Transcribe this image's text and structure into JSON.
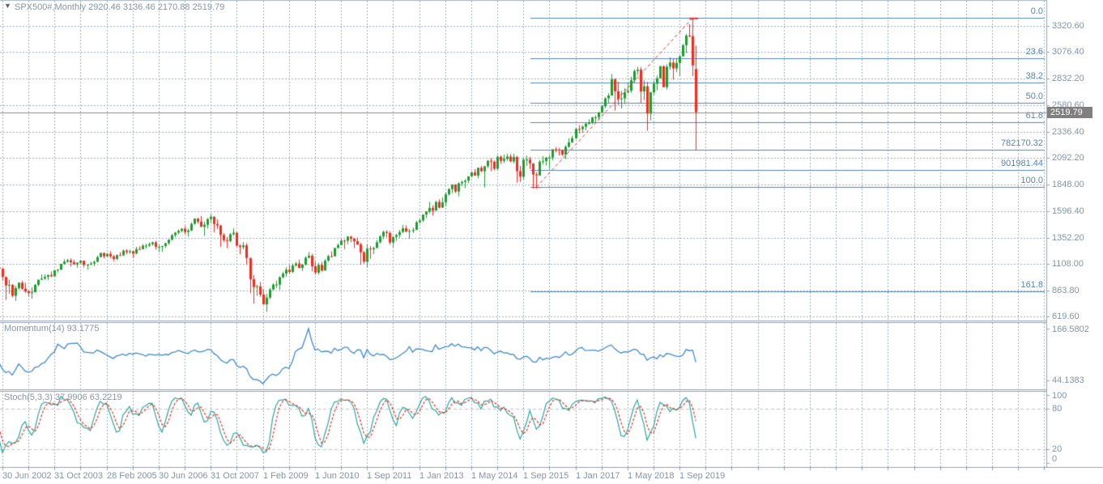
{
  "header": {
    "symbol_title": "SPX500#,Monthly 2920.46 3136.46 2170.88 2519.79",
    "dropdown_icon": "▼"
  },
  "panes": {
    "momentum_label": "Momentum(14) 93.1775",
    "stochastic_label": "Stoch(5,3,3) 37.9906 63.2219"
  },
  "axes": {
    "price_ticks": [
      "3320.60",
      "3076.40",
      "2832.20",
      "2580.60",
      "2336.40",
      "2092.20",
      "1848.00",
      "1596.40",
      "1352.20",
      "1108.00",
      "863.80",
      "619.60"
    ],
    "current_price": "2519.79",
    "momentum_scale_max": "166.5802",
    "momentum_scale_min": "44.1383",
    "stoch_scale": [
      "100",
      "80",
      "20",
      "0"
    ],
    "time_labels": [
      "30 Jun 2002",
      "31 Oct 2003",
      "28 Feb 2005",
      "30 Jun 2006",
      "31 Oct 2007",
      "1 Feb 2009",
      "1 Jun 2010",
      "1 Sep 2011",
      "1 Jan 2013",
      "1 May 2014",
      "1 Sep 2015",
      "1 Jan 2017",
      "1 May 2018",
      "1 Sep 2019"
    ]
  },
  "colors": {
    "background": "#ffffff",
    "grid": "#9faebf",
    "candle_up": "#1e9c30",
    "candle_down": "#f5291d",
    "fib_line": "#5585bb",
    "fib_anchor": "#e03030",
    "trendline": "#e03030",
    "momentum_line": "#3d8bd4",
    "stoch_main": "#28a9a1",
    "stoch_signal": "#ea3323",
    "current_price_line": "#8c8c8c",
    "price_tag_bg": "#7f7f7f",
    "separator": "#96a3b0",
    "stoch_level": "#c3c3c3",
    "axis_text": "#8495a8"
  },
  "chart_data": {
    "type": "candlestick",
    "symbol": "SPX500#",
    "timeframe": "Monthly",
    "last_bar": {
      "open": 2920.46,
      "high": 3136.46,
      "low": 2170.88,
      "close": 2519.79
    },
    "first_bar_month": "2002-04",
    "legend_position": "top-left",
    "grid": true,
    "fibonacci": {
      "levels": [
        {
          "label": "0.0",
          "price": 3393.52
        },
        {
          "label": "23.6",
          "price": 3023.2
        },
        {
          "label": "38.2",
          "price": 2794.2
        },
        {
          "label": "50.0",
          "price": 2609.0
        },
        {
          "label": "61.8",
          "price": 2423.9
        },
        {
          "label": "782170.32",
          "price": 2170.32
        },
        {
          "label": "901981.44",
          "price": 1981.44
        },
        {
          "label": "100.0",
          "price": 1824.52
        },
        {
          "label": "161.8",
          "price": 855.1
        }
      ],
      "trendline": {
        "from_bar": 166,
        "from_price": 1824.52,
        "to_bar": 214,
        "to_price": 3393.52
      }
    },
    "indicators": [
      {
        "name": "Momentum",
        "period": 14,
        "current": 93.1775,
        "scale_max": 166.5802,
        "scale_min": 44.1383
      },
      {
        "name": "Stochastic",
        "params": [
          5,
          3,
          3
        ],
        "main": 37.9906,
        "signal": 63.2219,
        "levels": [
          80,
          20
        ]
      }
    ],
    "ohlc_prelude": [
      [
        1366,
        1383,
        1215,
        1239
      ],
      [
        1239,
        1267,
        1081,
        1160
      ],
      [
        1160,
        1270,
        1091,
        1249
      ],
      [
        1249,
        1315,
        1232,
        1255
      ],
      [
        1255,
        1286,
        1203,
        1224
      ],
      [
        1224,
        1239,
        1165,
        1211
      ],
      [
        1211,
        1227,
        1124,
        1133
      ],
      [
        1133,
        1155,
        944,
        1040
      ],
      [
        1040,
        1110,
        1026,
        1059
      ],
      [
        1059,
        1163,
        1054,
        1139
      ],
      [
        1139,
        1173,
        1114,
        1148
      ],
      [
        1148,
        1176,
        1081,
        1130
      ],
      [
        1130,
        1130,
        1074,
        1106
      ],
      [
        1106,
        1173,
        1103,
        1147
      ]
    ],
    "ohlc": [
      [
        1147,
        1147,
        1063,
        1077
      ],
      [
        1077,
        1097,
        1048,
        1067
      ],
      [
        1067,
        1070,
        953,
        990
      ],
      [
        990,
        990,
        776,
        911
      ],
      [
        911,
        965,
        833,
        916
      ],
      [
        916,
        924,
        800,
        815
      ],
      [
        815,
        907,
        768,
        886
      ],
      [
        886,
        941,
        872,
        936
      ],
      [
        936,
        954,
        869,
        880
      ],
      [
        880,
        935,
        840,
        856
      ],
      [
        856,
        864,
        806,
        841
      ],
      [
        841,
        895,
        789,
        848
      ],
      [
        848,
        924,
        847,
        917
      ],
      [
        917,
        965,
        902,
        964
      ],
      [
        964,
        1015,
        962,
        975
      ],
      [
        975,
        1015,
        962,
        990
      ],
      [
        990,
        1011,
        960,
        1008
      ],
      [
        1008,
        1040,
        990,
        996
      ],
      [
        996,
        1053,
        995,
        1051
      ],
      [
        1051,
        1063,
        1031,
        1058
      ],
      [
        1058,
        1112,
        1053,
        1112
      ],
      [
        1112,
        1155,
        1105,
        1131
      ],
      [
        1131,
        1158,
        1122,
        1145
      ],
      [
        1145,
        1163,
        1087,
        1126
      ],
      [
        1126,
        1150,
        1107,
        1107
      ],
      [
        1107,
        1127,
        1076,
        1121
      ],
      [
        1121,
        1146,
        1113,
        1141
      ],
      [
        1141,
        1141,
        1078,
        1102
      ],
      [
        1102,
        1109,
        1060,
        1104
      ],
      [
        1104,
        1131,
        1099,
        1115
      ],
      [
        1115,
        1142,
        1090,
        1130
      ],
      [
        1130,
        1188,
        1127,
        1174
      ],
      [
        1174,
        1217,
        1173,
        1212
      ],
      [
        1212,
        1217,
        1163,
        1181
      ],
      [
        1181,
        1212,
        1180,
        1204
      ],
      [
        1204,
        1229,
        1163,
        1181
      ],
      [
        1181,
        1192,
        1136,
        1157
      ],
      [
        1157,
        1199,
        1146,
        1192
      ],
      [
        1192,
        1219,
        1188,
        1191
      ],
      [
        1191,
        1245,
        1183,
        1234
      ],
      [
        1234,
        1246,
        1201,
        1220
      ],
      [
        1220,
        1243,
        1205,
        1229
      ],
      [
        1229,
        1233,
        1168,
        1207
      ],
      [
        1207,
        1270,
        1201,
        1249
      ],
      [
        1249,
        1275,
        1246,
        1248
      ],
      [
        1248,
        1294,
        1245,
        1280
      ],
      [
        1280,
        1297,
        1254,
        1281
      ],
      [
        1281,
        1310,
        1268,
        1295
      ],
      [
        1295,
        1318,
        1280,
        1311
      ],
      [
        1311,
        1326,
        1246,
        1270
      ],
      [
        1270,
        1290,
        1219,
        1270
      ],
      [
        1270,
        1280,
        1225,
        1277
      ],
      [
        1277,
        1306,
        1261,
        1304
      ],
      [
        1304,
        1340,
        1290,
        1336
      ],
      [
        1336,
        1389,
        1327,
        1378
      ],
      [
        1378,
        1407,
        1360,
        1401
      ],
      [
        1401,
        1432,
        1385,
        1418
      ],
      [
        1418,
        1441,
        1404,
        1438
      ],
      [
        1438,
        1461,
        1389,
        1407
      ],
      [
        1407,
        1438,
        1364,
        1421
      ],
      [
        1421,
        1498,
        1416,
        1482
      ],
      [
        1482,
        1535,
        1476,
        1531
      ],
      [
        1531,
        1540,
        1485,
        1503
      ],
      [
        1503,
        1556,
        1454,
        1455
      ],
      [
        1455,
        1504,
        1371,
        1474
      ],
      [
        1474,
        1539,
        1439,
        1527
      ],
      [
        1527,
        1576,
        1489,
        1549
      ],
      [
        1549,
        1552,
        1406,
        1481
      ],
      [
        1481,
        1524,
        1436,
        1468
      ],
      [
        1468,
        1472,
        1270,
        1379
      ],
      [
        1379,
        1396,
        1316,
        1331
      ],
      [
        1331,
        1359,
        1257,
        1323
      ],
      [
        1323,
        1397,
        1313,
        1386
      ],
      [
        1386,
        1440,
        1374,
        1400
      ],
      [
        1400,
        1406,
        1272,
        1280
      ],
      [
        1280,
        1292,
        1200,
        1267
      ],
      [
        1267,
        1313,
        1247,
        1283
      ],
      [
        1283,
        1303,
        1106,
        1166
      ],
      [
        1166,
        1167,
        839,
        969
      ],
      [
        969,
        1007,
        741,
        896
      ],
      [
        896,
        918,
        815,
        903
      ],
      [
        903,
        943,
        804,
        826
      ],
      [
        826,
        875,
        735,
        735
      ],
      [
        735,
        832,
        666,
        798
      ],
      [
        798,
        888,
        783,
        873
      ],
      [
        873,
        930,
        866,
        919
      ],
      [
        919,
        956,
        888,
        919
      ],
      [
        919,
        996,
        869,
        987
      ],
      [
        987,
        1039,
        978,
        1021
      ],
      [
        1021,
        1080,
        992,
        1057
      ],
      [
        1057,
        1101,
        1019,
        1036
      ],
      [
        1036,
        1113,
        1029,
        1096
      ],
      [
        1096,
        1130,
        1085,
        1115
      ],
      [
        1115,
        1150,
        1071,
        1074
      ],
      [
        1074,
        1112,
        1045,
        1104
      ],
      [
        1104,
        1181,
        1097,
        1169
      ],
      [
        1169,
        1220,
        1162,
        1187
      ],
      [
        1187,
        1205,
        1041,
        1089
      ],
      [
        1089,
        1131,
        1011,
        1031
      ],
      [
        1031,
        1121,
        1011,
        1102
      ],
      [
        1102,
        1130,
        1040,
        1049
      ],
      [
        1049,
        1158,
        1049,
        1141
      ],
      [
        1141,
        1196,
        1132,
        1183
      ],
      [
        1183,
        1227,
        1173,
        1181
      ],
      [
        1181,
        1263,
        1187,
        1258
      ],
      [
        1258,
        1302,
        1257,
        1286
      ],
      [
        1286,
        1344,
        1289,
        1327
      ],
      [
        1327,
        1338,
        1249,
        1326
      ],
      [
        1326,
        1370,
        1294,
        1364
      ],
      [
        1364,
        1371,
        1311,
        1345
      ],
      [
        1345,
        1353,
        1258,
        1321
      ],
      [
        1321,
        1356,
        1282,
        1292
      ],
      [
        1292,
        1307,
        1101,
        1219
      ],
      [
        1219,
        1230,
        1114,
        1131
      ],
      [
        1131,
        1293,
        1075,
        1253
      ],
      [
        1253,
        1277,
        1158,
        1247
      ],
      [
        1247,
        1270,
        1202,
        1258
      ],
      [
        1258,
        1333,
        1258,
        1312
      ],
      [
        1312,
        1378,
        1300,
        1366
      ],
      [
        1366,
        1419,
        1340,
        1408
      ],
      [
        1408,
        1422,
        1357,
        1398
      ],
      [
        1398,
        1415,
        1291,
        1310
      ],
      [
        1310,
        1363,
        1266,
        1362
      ],
      [
        1362,
        1391,
        1325,
        1379
      ],
      [
        1379,
        1426,
        1354,
        1407
      ],
      [
        1407,
        1474,
        1396,
        1441
      ],
      [
        1441,
        1470,
        1403,
        1412
      ],
      [
        1412,
        1434,
        1343,
        1416
      ],
      [
        1416,
        1448,
        1398,
        1426
      ],
      [
        1426,
        1509,
        1426,
        1498
      ],
      [
        1498,
        1530,
        1485,
        1515
      ],
      [
        1515,
        1570,
        1501,
        1569
      ],
      [
        1569,
        1597,
        1536,
        1598
      ],
      [
        1598,
        1687,
        1581,
        1631
      ],
      [
        1631,
        1654,
        1560,
        1606
      ],
      [
        1606,
        1698,
        1604,
        1686
      ],
      [
        1686,
        1710,
        1627,
        1633
      ],
      [
        1633,
        1730,
        1633,
        1682
      ],
      [
        1682,
        1775,
        1646,
        1757
      ],
      [
        1757,
        1813,
        1746,
        1806
      ],
      [
        1806,
        1849,
        1768,
        1848
      ],
      [
        1848,
        1851,
        1770,
        1783
      ],
      [
        1783,
        1868,
        1738,
        1859
      ],
      [
        1859,
        1884,
        1834,
        1872
      ],
      [
        1872,
        1897,
        1814,
        1884
      ],
      [
        1884,
        1924,
        1860,
        1924
      ],
      [
        1924,
        1968,
        1916,
        1960
      ],
      [
        1960,
        1991,
        1930,
        1931
      ],
      [
        1931,
        2005,
        1905,
        2003
      ],
      [
        2003,
        2019,
        1964,
        1972
      ],
      [
        1972,
        2018,
        1821,
        2018
      ],
      [
        2018,
        2076,
        2001,
        2068
      ],
      [
        2068,
        2094,
        1972,
        2059
      ],
      [
        2059,
        2072,
        1981,
        1995
      ],
      [
        1995,
        2120,
        1980,
        2105
      ],
      [
        2105,
        2118,
        2040,
        2068
      ],
      [
        2068,
        2126,
        2048,
        2086
      ],
      [
        2086,
        2135,
        2068,
        2107
      ],
      [
        2107,
        2130,
        2056,
        2063
      ],
      [
        2063,
        2133,
        2044,
        2104
      ],
      [
        2104,
        2113,
        1867,
        1972
      ],
      [
        1972,
        2021,
        1872,
        1920
      ],
      [
        1920,
        2095,
        1894,
        2079
      ],
      [
        2079,
        2116,
        2019,
        2080
      ],
      [
        2080,
        2105,
        1993,
        2044
      ],
      [
        2044,
        2044,
        1812,
        1940
      ],
      [
        1940,
        1963,
        1810,
        1932
      ],
      [
        1932,
        2073,
        1932,
        2060
      ],
      [
        2060,
        2111,
        2034,
        2065
      ],
      [
        2065,
        2103,
        2025,
        2097
      ],
      [
        2097,
        2120,
        1992,
        2099
      ],
      [
        2099,
        2177,
        2074,
        2174
      ],
      [
        2174,
        2194,
        2147,
        2171
      ],
      [
        2171,
        2188,
        2119,
        2168
      ],
      [
        2168,
        2170,
        2114,
        2126
      ],
      [
        2126,
        2214,
        2083,
        2199
      ],
      [
        2199,
        2278,
        2187,
        2239
      ],
      [
        2239,
        2301,
        2234,
        2279
      ],
      [
        2279,
        2372,
        2267,
        2364
      ],
      [
        2364,
        2401,
        2322,
        2363
      ],
      [
        2363,
        2399,
        2328,
        2384
      ],
      [
        2384,
        2419,
        2352,
        2412
      ],
      [
        2412,
        2454,
        2405,
        2423
      ],
      [
        2423,
        2478,
        2408,
        2470
      ],
      [
        2470,
        2491,
        2417,
        2472
      ],
      [
        2472,
        2519,
        2446,
        2519
      ],
      [
        2519,
        2583,
        2520,
        2575
      ],
      [
        2575,
        2658,
        2557,
        2648
      ],
      [
        2648,
        2695,
        2606,
        2674
      ],
      [
        2674,
        2873,
        2674,
        2824
      ],
      [
        2824,
        2835,
        2533,
        2714
      ],
      [
        2714,
        2802,
        2586,
        2641
      ],
      [
        2641,
        2717,
        2553,
        2648
      ],
      [
        2648,
        2742,
        2595,
        2705
      ],
      [
        2705,
        2791,
        2692,
        2718
      ],
      [
        2718,
        2848,
        2699,
        2816
      ],
      [
        2816,
        2916,
        2796,
        2902
      ],
      [
        2902,
        2941,
        2865,
        2914
      ],
      [
        2914,
        2939,
        2603,
        2712
      ],
      [
        2712,
        2815,
        2631,
        2760
      ],
      [
        2760,
        2800,
        2347,
        2507
      ],
      [
        2507,
        2708,
        2444,
        2704
      ],
      [
        2704,
        2813,
        2682,
        2784
      ],
      [
        2784,
        2860,
        2722,
        2834
      ],
      [
        2834,
        2948,
        2834,
        2946
      ],
      [
        2946,
        2954,
        2751,
        2752
      ],
      [
        2752,
        2964,
        2729,
        2942
      ],
      [
        2942,
        3028,
        2914,
        2980
      ],
      [
        2980,
        3014,
        2822,
        2926
      ],
      [
        2926,
        3022,
        2892,
        2977
      ],
      [
        2977,
        3050,
        2856,
        3038
      ],
      [
        3038,
        3154,
        3037,
        3141
      ],
      [
        3141,
        3248,
        3070,
        3231
      ],
      [
        3231,
        3338,
        3215,
        3226
      ],
      [
        3226,
        3393.52,
        2856,
        2954
      ],
      [
        2920.46,
        3136.46,
        2170.88,
        2519.79
      ]
    ]
  }
}
